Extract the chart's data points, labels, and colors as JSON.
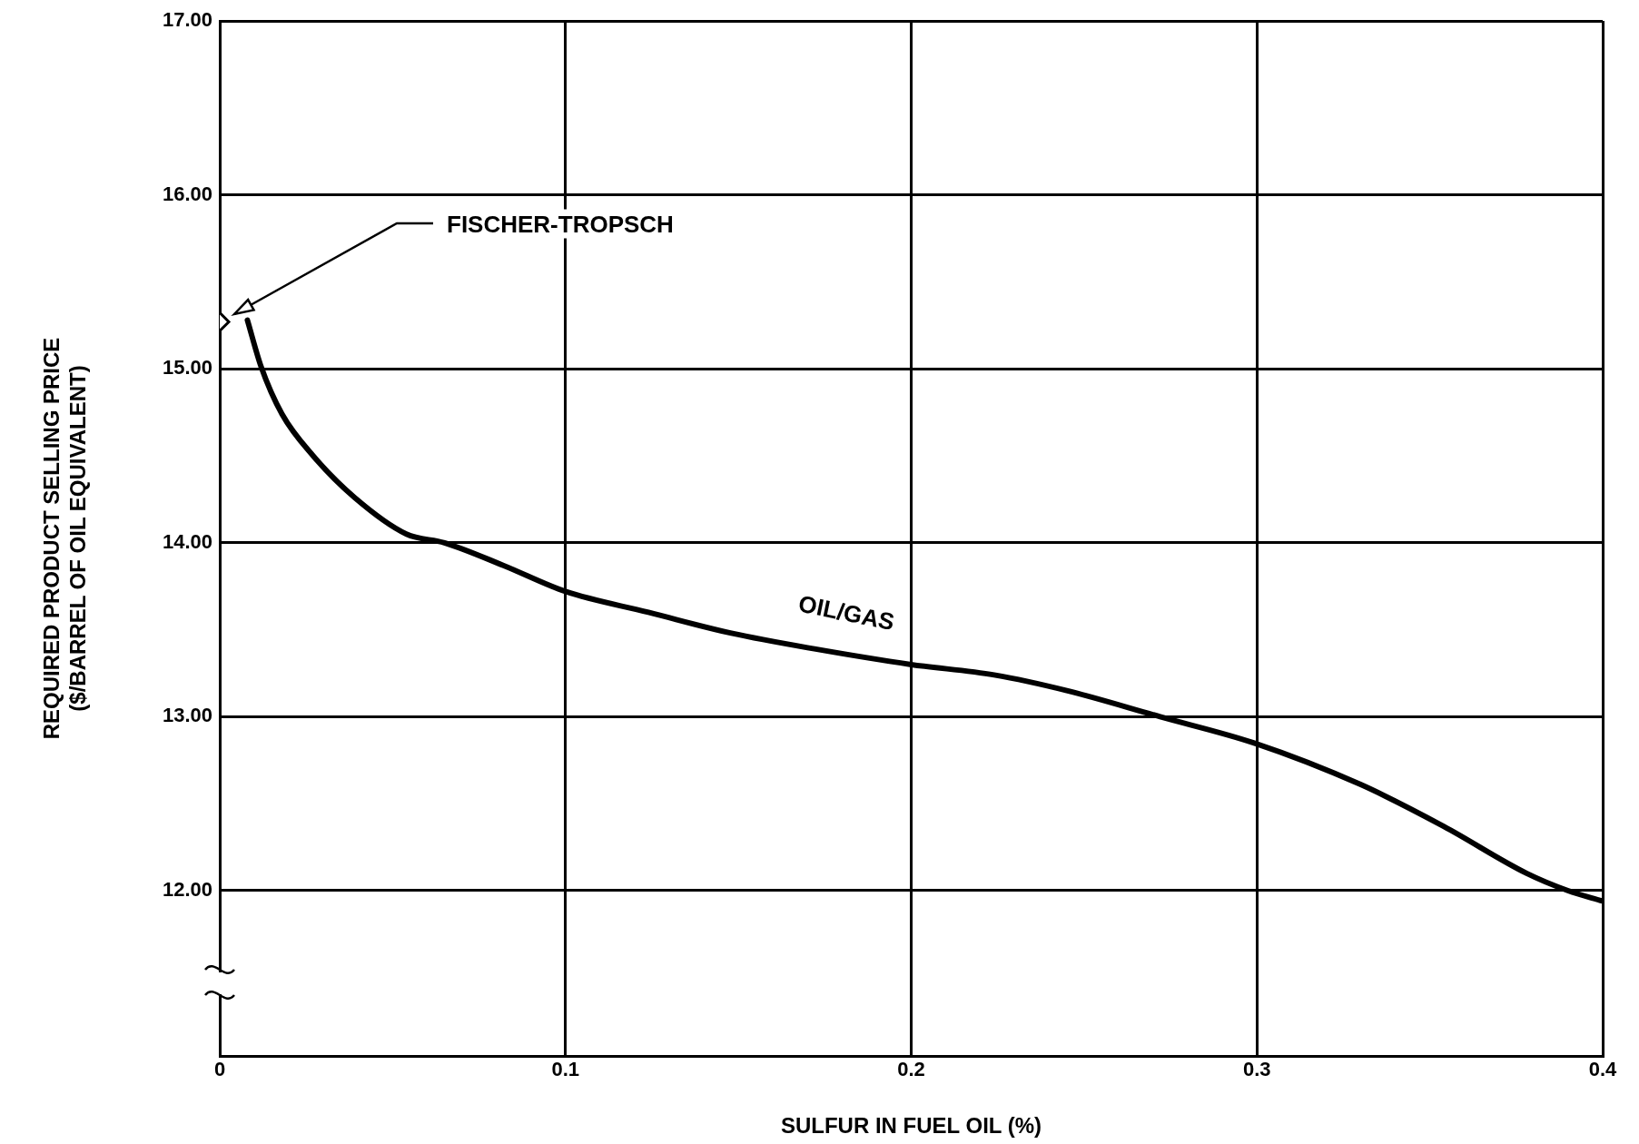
{
  "chart_data": {
    "type": "line",
    "xlabel": "SULFUR IN FUEL OIL (%)",
    "ylabel": "REQUIRED PRODUCT SELLING PRICE\n($/BARREL OF OIL EQUIVALENT)",
    "xlim": [
      0,
      0.4
    ],
    "xticks": [
      0,
      0.1,
      0.2,
      0.3,
      0.4
    ],
    "ylim": [
      11.05,
      17
    ],
    "yticks": [
      {
        "value": 12,
        "label": "12.00"
      },
      {
        "value": 13,
        "label": "13.00"
      },
      {
        "value": 14,
        "label": "14.00"
      },
      {
        "value": 15,
        "label": "15.00"
      },
      {
        "value": 16,
        "label": "16.00"
      },
      {
        "value": 17,
        "label": "17.00"
      }
    ],
    "grid": true,
    "legend": false,
    "marker": "none",
    "line_style": "solid",
    "series": [
      {
        "name": "OIL/GAS",
        "color": "#000000",
        "x": [
          0.008,
          0.012,
          0.018,
          0.027,
          0.039,
          0.054,
          0.065,
          0.082,
          0.1,
          0.124,
          0.148,
          0.172,
          0.2,
          0.224,
          0.245,
          0.272,
          0.299,
          0.33,
          0.354,
          0.378,
          0.39,
          0.4
        ],
        "values": [
          15.28,
          15.01,
          14.74,
          14.5,
          14.26,
          14.05,
          14.0,
          13.87,
          13.72,
          13.6,
          13.48,
          13.39,
          13.3,
          13.24,
          13.15,
          13.0,
          12.85,
          12.61,
          12.37,
          12.1,
          12.0,
          11.94
        ]
      },
      {
        "name": "FISCHER-TROPSCH",
        "type": "scatter",
        "marker": "diamond",
        "color": "#000000",
        "x": [
          0
        ],
        "values": [
          15.27
        ]
      }
    ]
  }
}
